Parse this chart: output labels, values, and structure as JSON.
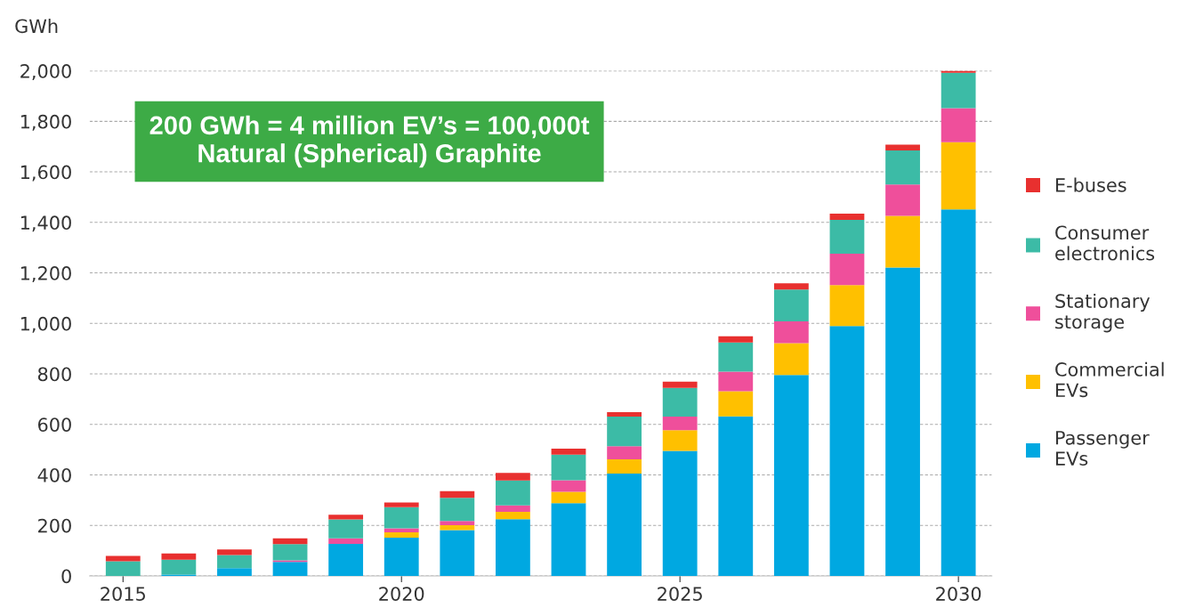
{
  "chart_data": {
    "type": "bar",
    "stacked": true,
    "ylabel": "GWh",
    "categories": [
      "2015",
      null,
      null,
      null,
      null,
      "2020",
      null,
      null,
      null,
      null,
      "2025",
      null,
      null,
      null,
      null,
      "2030"
    ],
    "series": [
      {
        "name": "Passenger EVs",
        "color": "#00a8e1",
        "values": [
          0,
          5,
          31,
          56,
          127,
          152,
          182,
          225,
          288,
          405,
          495,
          632,
          796,
          990,
          1221,
          1451
        ]
      },
      {
        "name": "Commercial EVs",
        "color": "#ffc000",
        "values": [
          0,
          0,
          0,
          0,
          0,
          21,
          19,
          29,
          45,
          57,
          82,
          99,
          126,
          162,
          205,
          266
        ]
      },
      {
        "name": "Stationary storage",
        "color": "#ef4f9b",
        "values": [
          0,
          0,
          0,
          6,
          22,
          16,
          17,
          25,
          46,
          52,
          54,
          78,
          86,
          124,
          124,
          135
        ]
      },
      {
        "name": "Consumer electronics",
        "color": "#3cbba6",
        "values": [
          58,
          59,
          52,
          64,
          75,
          83,
          91,
          99,
          101,
          117,
          114,
          115,
          126,
          134,
          135,
          140
        ]
      },
      {
        "name": "E-buses",
        "color": "#e8302f",
        "values": [
          21,
          25,
          22,
          23,
          18,
          19,
          27,
          30,
          24,
          18,
          24,
          25,
          25,
          25,
          23,
          8
        ]
      }
    ],
    "ylim": [
      0,
      2000
    ],
    "yticks": [
      0,
      200,
      400,
      600,
      800,
      {
        "value": 1000,
        "label": "1,000"
      },
      {
        "value": 1200,
        "label": "1,200"
      },
      {
        "value": 1400,
        "label": "1,400"
      },
      {
        "value": 1600,
        "label": "1,600"
      },
      {
        "value": 1800,
        "label": "1,800"
      },
      {
        "value": 2000,
        "label": "2,000"
      }
    ],
    "grid": "y",
    "legend": "right",
    "annotations": [
      "200 GWh = 4 million EV’s = 100,000t\nNatural (Spherical) Graphite"
    ]
  }
}
